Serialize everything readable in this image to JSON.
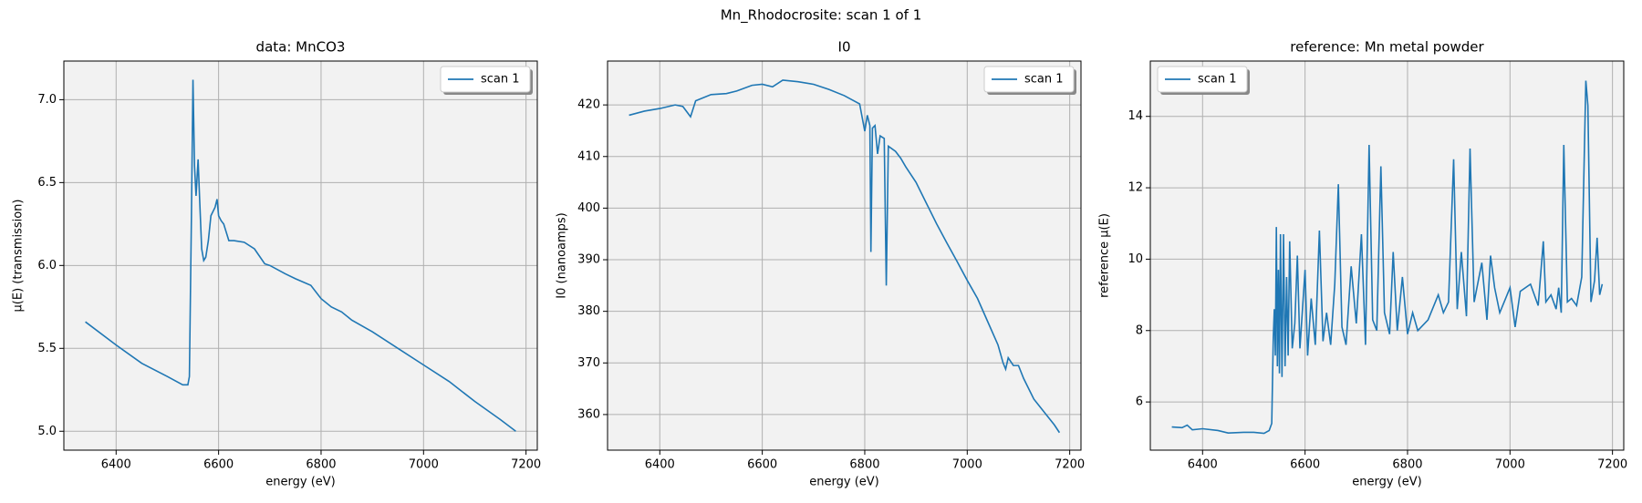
{
  "suptitle": "Mn_Rhodocrosite: scan 1 of 1",
  "chart_data": [
    {
      "type": "line",
      "title": "data: MnCO3",
      "xlabel": "energy (eV)",
      "ylabel": "μ(E) (transmission)",
      "x": [
        6340,
        6400,
        6450,
        6500,
        6530,
        6540,
        6543,
        6547,
        6550,
        6553,
        6556,
        6560,
        6563,
        6567,
        6571,
        6575,
        6580,
        6585,
        6593,
        6597,
        6600,
        6605,
        6610,
        6620,
        6630,
        6650,
        6670,
        6690,
        6700,
        6730,
        6750,
        6780,
        6800,
        6820,
        6840,
        6860,
        6900,
        6950,
        7000,
        7050,
        7100,
        7150,
        7180
      ],
      "series": [
        {
          "name": "scan 1",
          "color": "#1f77b4",
          "values": [
            5.66,
            5.52,
            5.41,
            5.33,
            5.28,
            5.28,
            5.33,
            6.3,
            7.12,
            6.6,
            6.42,
            6.64,
            6.4,
            6.1,
            6.03,
            6.05,
            6.15,
            6.3,
            6.35,
            6.4,
            6.3,
            6.27,
            6.25,
            6.15,
            6.15,
            6.14,
            6.1,
            6.01,
            6.0,
            5.95,
            5.92,
            5.88,
            5.8,
            5.75,
            5.72,
            5.67,
            5.6,
            5.5,
            5.4,
            5.3,
            5.18,
            5.07,
            5.0
          ]
        }
      ],
      "xlim": [
        6298,
        7222
      ],
      "ylim": [
        4.886,
        7.233
      ],
      "xticks": [
        6400,
        6600,
        6800,
        7000,
        7200
      ],
      "yticks": [
        {
          "value": 5.0,
          "label": "5.0"
        },
        5.5,
        {
          "value": 6.0,
          "label": "6.0"
        },
        6.5,
        {
          "value": 7.0,
          "label": "7.0"
        }
      ],
      "grid": true,
      "legend": "upper right"
    },
    {
      "type": "line",
      "title": "I0",
      "xlabel": "energy (eV)",
      "ylabel": "I0 (nanoamps)",
      "x": [
        6340,
        6370,
        6400,
        6430,
        6445,
        6460,
        6470,
        6500,
        6530,
        6550,
        6580,
        6600,
        6620,
        6640,
        6670,
        6700,
        6730,
        6760,
        6790,
        6800,
        6805,
        6810,
        6812,
        6815,
        6820,
        6825,
        6830,
        6838,
        6842,
        6846,
        6860,
        6870,
        6880,
        6900,
        6920,
        6940,
        6960,
        6980,
        7000,
        7020,
        7040,
        7060,
        7070,
        7075,
        7080,
        7090,
        7100,
        7110,
        7130,
        7150,
        7170,
        7180
      ],
      "series": [
        {
          "name": "scan 1",
          "color": "#1f77b4",
          "values": [
            418,
            418.8,
            419.3,
            420,
            419.7,
            417.7,
            420.8,
            422,
            422.2,
            422.7,
            423.8,
            424,
            423.5,
            424.8,
            424.5,
            424,
            423,
            421.8,
            420.2,
            414.9,
            418,
            416,
            391.5,
            415.5,
            416,
            410.5,
            414,
            413.5,
            385,
            412,
            411,
            409.7,
            408,
            405,
            401,
            397,
            393.3,
            389.7,
            386,
            382.5,
            378,
            373.5,
            370,
            368.8,
            371,
            369.5,
            369.5,
            367,
            363,
            360.5,
            358,
            356.5
          ]
        }
      ],
      "xlim": [
        6298,
        7222
      ],
      "ylim": [
        353.1,
        428.5
      ],
      "xticks": [
        6400,
        6600,
        6800,
        7000,
        7200
      ],
      "yticks": [
        360,
        370,
        380,
        390,
        400,
        410,
        420
      ],
      "grid": true,
      "legend": "upper right"
    },
    {
      "type": "line",
      "title": "reference: Mn metal powder",
      "xlabel": "energy (eV)",
      "ylabel": "reference μ(E)",
      "x": [
        6340,
        6360,
        6370,
        6380,
        6400,
        6430,
        6450,
        6480,
        6500,
        6520,
        6530,
        6535,
        6538,
        6540,
        6542,
        6544,
        6546,
        6548,
        6550,
        6552,
        6555,
        6558,
        6561,
        6564,
        6567,
        6570,
        6575,
        6580,
        6585,
        6590,
        6600,
        6605,
        6612,
        6620,
        6628,
        6635,
        6642,
        6650,
        6658,
        6665,
        6672,
        6680,
        6690,
        6700,
        6710,
        6718,
        6725,
        6732,
        6740,
        6748,
        6755,
        6765,
        6772,
        6780,
        6790,
        6800,
        6810,
        6820,
        6840,
        6860,
        6870,
        6880,
        6890,
        6897,
        6905,
        6915,
        6922,
        6930,
        6945,
        6955,
        6962,
        6970,
        6980,
        7000,
        7010,
        7020,
        7040,
        7055,
        7065,
        7070,
        7080,
        7090,
        7095,
        7100,
        7105,
        7112,
        7120,
        7130,
        7140,
        7148,
        7152,
        7158,
        7165,
        7170,
        7175,
        7180
      ],
      "series": [
        {
          "name": "scan 1",
          "color": "#1f77b4",
          "values": [
            5.3,
            5.28,
            5.35,
            5.22,
            5.25,
            5.2,
            5.13,
            5.15,
            5.15,
            5.12,
            5.2,
            5.4,
            7.8,
            8.6,
            7.3,
            10.9,
            7.0,
            9.7,
            6.8,
            10.7,
            6.7,
            10.7,
            7.0,
            9.5,
            7.3,
            10.5,
            7.5,
            8.2,
            10.1,
            7.5,
            9.7,
            7.3,
            8.9,
            7.6,
            10.8,
            7.7,
            8.5,
            7.6,
            9.3,
            12.1,
            8.1,
            7.6,
            9.8,
            8.2,
            10.7,
            7.6,
            13.2,
            8.3,
            8.0,
            12.6,
            8.5,
            7.9,
            10.2,
            8.0,
            9.5,
            7.9,
            8.5,
            8.0,
            8.3,
            9.0,
            8.5,
            8.8,
            12.8,
            8.6,
            10.2,
            8.4,
            13.1,
            8.8,
            9.9,
            8.3,
            10.1,
            9.2,
            8.5,
            9.2,
            8.1,
            9.1,
            9.3,
            8.7,
            10.5,
            8.8,
            9.0,
            8.6,
            9.2,
            8.5,
            13.2,
            8.8,
            8.9,
            8.7,
            9.5,
            15.0,
            14.3,
            8.8,
            9.4,
            10.6,
            9.0,
            9.3
          ]
        }
      ],
      "xlim": [
        6298,
        7222
      ],
      "ylim": [
        4.65,
        15.55
      ],
      "xticks": [
        6400,
        6600,
        6800,
        7000,
        7200
      ],
      "yticks": [
        6,
        8,
        10,
        12,
        14
      ],
      "grid": true,
      "legend": "upper left"
    }
  ]
}
